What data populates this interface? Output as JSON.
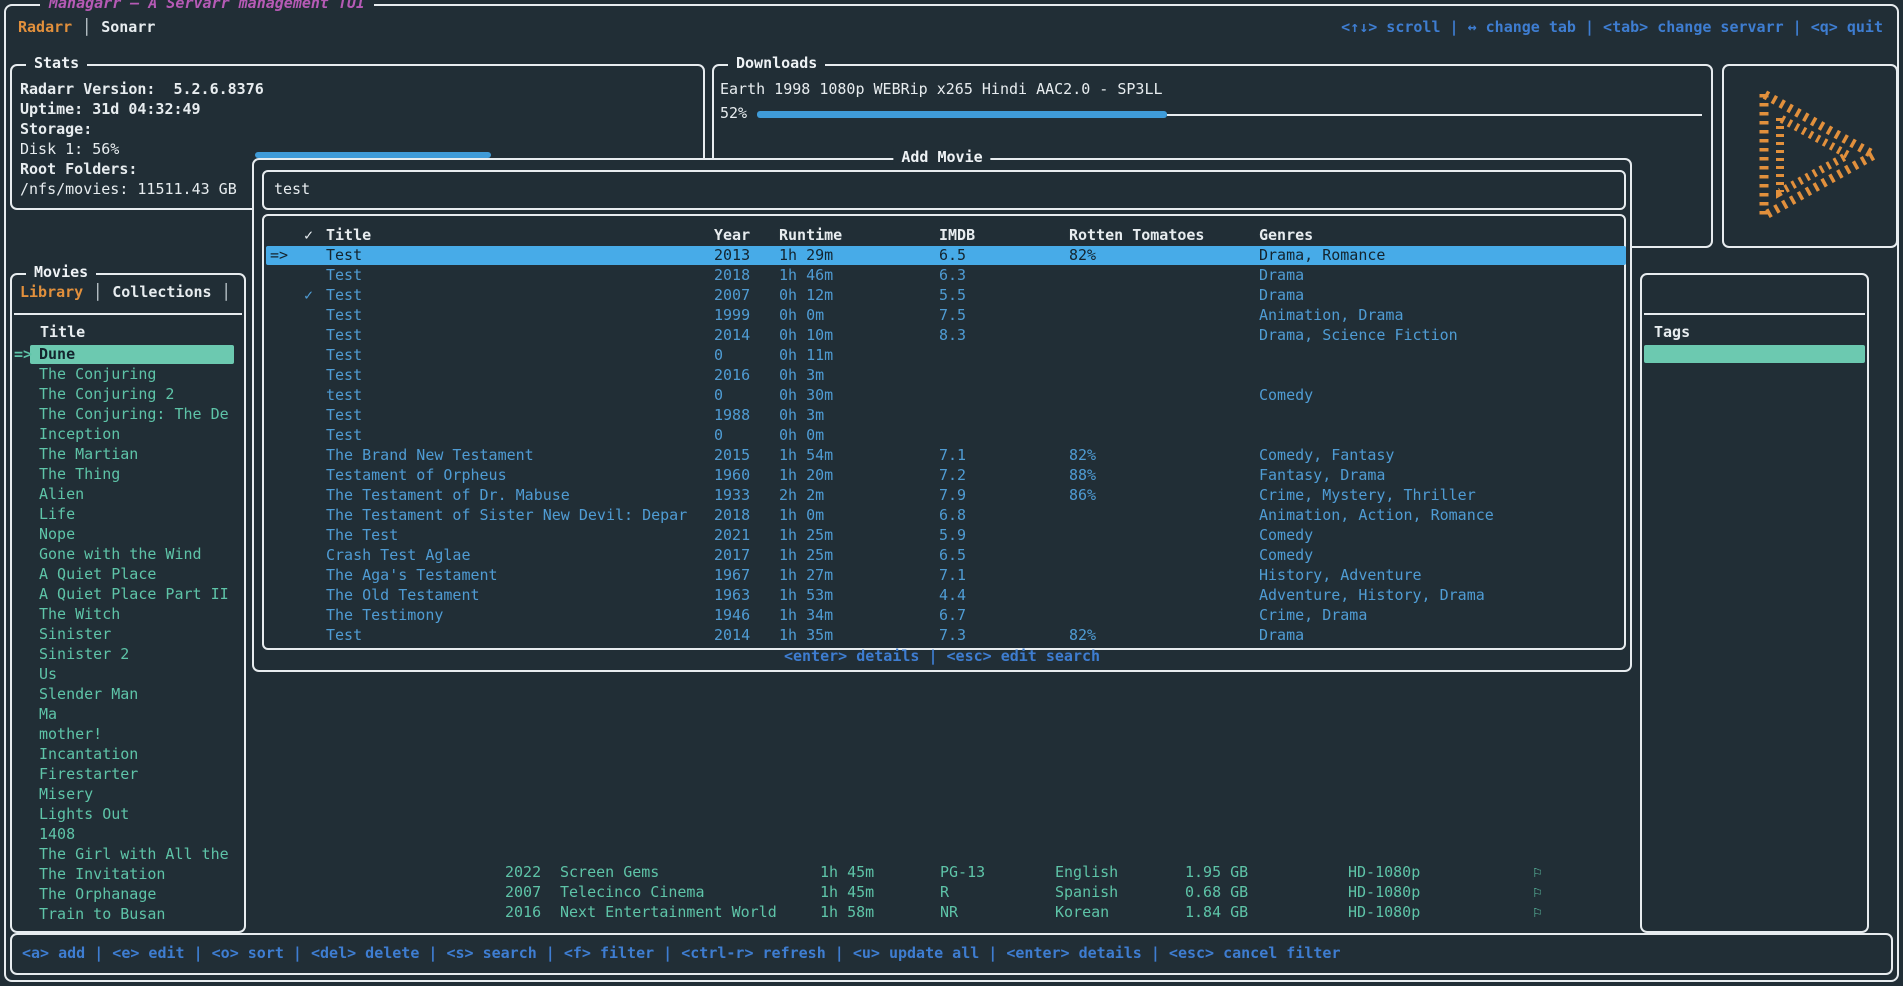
{
  "app": {
    "title": "Managarr — A Servarr management TUI",
    "tabs": {
      "radarr": "Radarr",
      "sonarr": "Sonarr"
    },
    "top_keybinds": "<↑↓> scroll | ↔ change tab | <tab> change servarr | <q> quit"
  },
  "stats": {
    "panel_title": "Stats",
    "radarr_version_label": "Radarr Version:",
    "radarr_version": "5.2.6.8376",
    "uptime_label": "Uptime:",
    "uptime": "31d 04:32:49",
    "storage_label": "Storage:",
    "disk_label": "Disk 1:",
    "disk_percent": "56%",
    "root_folders_label": "Root Folders:",
    "root_folder": "/nfs/movies: 11511.43 GB"
  },
  "downloads": {
    "panel_title": "Downloads",
    "item_title": "Earth 1998 1080p WEBRip x265 Hindi AAC2.0 - SP3LL",
    "progress_percent": "52%"
  },
  "movies": {
    "panel_title": "Movies",
    "tab_library": "Library",
    "tab_collections": "Collections",
    "header": "Title",
    "selected_index": 0,
    "selected_marker": "=>",
    "items": [
      "Dune",
      "The Conjuring",
      "The Conjuring 2",
      "The Conjuring: The De",
      "Inception",
      "The Martian",
      "The Thing",
      "Alien",
      "Life",
      "Nope",
      "Gone with the Wind",
      "A Quiet Place",
      "A Quiet Place Part II",
      "The Witch",
      "Sinister",
      "Sinister 2",
      "Us",
      "Slender Man",
      "Ma",
      "mother!",
      "Incantation",
      "Firestarter",
      "Misery",
      "Lights Out",
      "1408",
      "The Girl with All the",
      "The Invitation",
      "The Orphanage",
      "Train to Busan"
    ]
  },
  "tags": {
    "panel_title": "Tags"
  },
  "add_movie": {
    "panel_title": "Add Movie",
    "search_value": "test",
    "columns": [
      "✓",
      "Title",
      "Year",
      "Runtime",
      "IMDB",
      "Rotten Tomatoes",
      "Genres"
    ],
    "selected_index": 0,
    "selected_marker": "=>",
    "checked_glyph": "✓",
    "keybinds": "<enter> details | <esc> edit search",
    "rows": [
      {
        "checked": false,
        "title": "Test",
        "year": "2013",
        "runtime": "1h 29m",
        "imdb": "6.5",
        "rt": "82%",
        "genres": "Drama, Romance"
      },
      {
        "checked": false,
        "title": "Test",
        "year": "2018",
        "runtime": "1h 46m",
        "imdb": "6.3",
        "rt": "",
        "genres": "Drama"
      },
      {
        "checked": true,
        "title": "Test",
        "year": "2007",
        "runtime": "0h 12m",
        "imdb": "5.5",
        "rt": "",
        "genres": "Drama"
      },
      {
        "checked": false,
        "title": "Test",
        "year": "1999",
        "runtime": "0h 0m",
        "imdb": "7.5",
        "rt": "",
        "genres": "Animation, Drama"
      },
      {
        "checked": false,
        "title": "Test",
        "year": "2014",
        "runtime": "0h 10m",
        "imdb": "8.3",
        "rt": "",
        "genres": "Drama, Science Fiction"
      },
      {
        "checked": false,
        "title": "Test",
        "year": "0",
        "runtime": "0h 11m",
        "imdb": "",
        "rt": "",
        "genres": ""
      },
      {
        "checked": false,
        "title": "Test",
        "year": "2016",
        "runtime": "0h 3m",
        "imdb": "",
        "rt": "",
        "genres": ""
      },
      {
        "checked": false,
        "title": "test",
        "year": "0",
        "runtime": "0h 30m",
        "imdb": "",
        "rt": "",
        "genres": "Comedy"
      },
      {
        "checked": false,
        "title": "Test",
        "year": "1988",
        "runtime": "0h 3m",
        "imdb": "",
        "rt": "",
        "genres": ""
      },
      {
        "checked": false,
        "title": "Test",
        "year": "0",
        "runtime": "0h 0m",
        "imdb": "",
        "rt": "",
        "genres": ""
      },
      {
        "checked": false,
        "title": "The Brand New Testament",
        "year": "2015",
        "runtime": "1h 54m",
        "imdb": "7.1",
        "rt": "82%",
        "genres": "Comedy, Fantasy"
      },
      {
        "checked": false,
        "title": "Testament of Orpheus",
        "year": "1960",
        "runtime": "1h 20m",
        "imdb": "7.2",
        "rt": "88%",
        "genres": "Fantasy, Drama"
      },
      {
        "checked": false,
        "title": "The Testament of Dr. Mabuse",
        "year": "1933",
        "runtime": "2h 2m",
        "imdb": "7.9",
        "rt": "86%",
        "genres": "Crime, Mystery, Thriller"
      },
      {
        "checked": false,
        "title": "The Testament of Sister New Devil: Depar",
        "year": "2018",
        "runtime": "1h 0m",
        "imdb": "6.8",
        "rt": "",
        "genres": "Animation, Action, Romance"
      },
      {
        "checked": false,
        "title": "The Test",
        "year": "2021",
        "runtime": "1h 25m",
        "imdb": "5.9",
        "rt": "",
        "genres": "Comedy"
      },
      {
        "checked": false,
        "title": "Crash Test Aglae",
        "year": "2017",
        "runtime": "1h 25m",
        "imdb": "6.5",
        "rt": "",
        "genres": "Comedy"
      },
      {
        "checked": false,
        "title": "The Aga's Testament",
        "year": "1967",
        "runtime": "1h 27m",
        "imdb": "7.1",
        "rt": "",
        "genres": "History, Adventure"
      },
      {
        "checked": false,
        "title": "The Old Testament",
        "year": "1963",
        "runtime": "1h 53m",
        "imdb": "4.4",
        "rt": "",
        "genres": "Adventure, History, Drama"
      },
      {
        "checked": false,
        "title": "The Testimony",
        "year": "1946",
        "runtime": "1h 34m",
        "imdb": "6.7",
        "rt": "",
        "genres": "Crime, Drama"
      },
      {
        "checked": false,
        "title": "Test",
        "year": "2014",
        "runtime": "1h 35m",
        "imdb": "7.3",
        "rt": "82%",
        "genres": "Drama"
      }
    ]
  },
  "background_rows": [
    {
      "year": "2022",
      "studio": "Screen Gems",
      "runtime": "1h 45m",
      "cert": "PG-13",
      "language": "English",
      "size": "1.95 GB",
      "quality": "HD-1080p",
      "tag_icon": "⚐"
    },
    {
      "year": "2007",
      "studio": "Telecinco Cinema",
      "runtime": "1h 45m",
      "cert": "R",
      "language": "Spanish",
      "size": "0.68 GB",
      "quality": "HD-1080p",
      "tag_icon": "⚐"
    },
    {
      "year": "2016",
      "studio": "Next Entertainment World",
      "runtime": "1h 58m",
      "cert": "NR",
      "language": "Korean",
      "size": "1.84 GB",
      "quality": "HD-1080p",
      "tag_icon": "⚐"
    }
  ],
  "bottom_keybinds": "<a> add | <e> edit | <o> sort | <del> delete | <s> search | <f> filter | <ctrl-r> refresh | <u> update all | <enter> details | <esc> cancel filter",
  "colors": {
    "background": "#212e36",
    "border": "#e7ecef",
    "accent_orange": "#e2903c",
    "title_purple": "#b55ab5",
    "keybind_blue": "#3e7dd1",
    "table_blue": "#4f9cd4",
    "selected_blue": "#47abe8",
    "teal": "#5ec4a8",
    "teal_selected": "#6cc9b0"
  }
}
